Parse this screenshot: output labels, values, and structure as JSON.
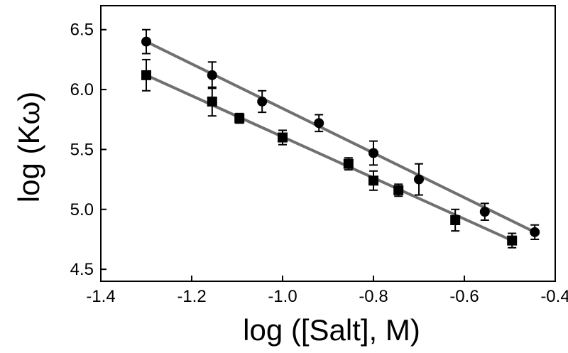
{
  "chart_data": {
    "type": "scatter",
    "title": "",
    "xlabel": "log ([Salt], M)",
    "ylabel": "log (Kω)",
    "xlim": [
      -1.4,
      -0.4
    ],
    "ylim": [
      4.4,
      6.7
    ],
    "xticks": [
      "-1.4",
      "-1.2",
      "-1.0",
      "-0.8",
      "-0.6",
      "-0.4"
    ],
    "yticks": [
      "4.5",
      "5.0",
      "5.5",
      "6.0",
      "6.5"
    ],
    "grid": false,
    "legend": "none",
    "series": [
      {
        "marker": "circle",
        "color": "#000000",
        "fit_color": "#707070",
        "points": [
          {
            "x": -1.3,
            "y": 6.4,
            "err": 0.1
          },
          {
            "x": -1.155,
            "y": 6.12,
            "err": 0.11
          },
          {
            "x": -1.045,
            "y": 5.9,
            "err": 0.09
          },
          {
            "x": -0.92,
            "y": 5.72,
            "err": 0.07
          },
          {
            "x": -0.8,
            "y": 5.47,
            "err": 0.1
          },
          {
            "x": -0.7,
            "y": 5.25,
            "err": 0.13
          },
          {
            "x": -0.555,
            "y": 4.98,
            "err": 0.07
          },
          {
            "x": -0.445,
            "y": 4.81,
            "err": 0.06
          }
        ],
        "fit": [
          [
            -1.3,
            6.4
          ],
          [
            -0.445,
            4.81
          ]
        ]
      },
      {
        "marker": "square",
        "color": "#000000",
        "fit_color": "#707070",
        "points": [
          {
            "x": -1.3,
            "y": 6.12,
            "err": 0.13
          },
          {
            "x": -1.155,
            "y": 5.9,
            "err": 0.12
          },
          {
            "x": -1.095,
            "y": 5.76,
            "err": 0.04
          },
          {
            "x": -1.0,
            "y": 5.6,
            "err": 0.06
          },
          {
            "x": -0.855,
            "y": 5.38,
            "err": 0.05
          },
          {
            "x": -0.8,
            "y": 5.24,
            "err": 0.08
          },
          {
            "x": -0.745,
            "y": 5.16,
            "err": 0.05
          },
          {
            "x": -0.62,
            "y": 4.91,
            "err": 0.09
          },
          {
            "x": -0.495,
            "y": 4.74,
            "err": 0.06
          }
        ],
        "fit": [
          [
            -1.3,
            6.12
          ],
          [
            -0.495,
            4.74
          ]
        ]
      }
    ]
  }
}
